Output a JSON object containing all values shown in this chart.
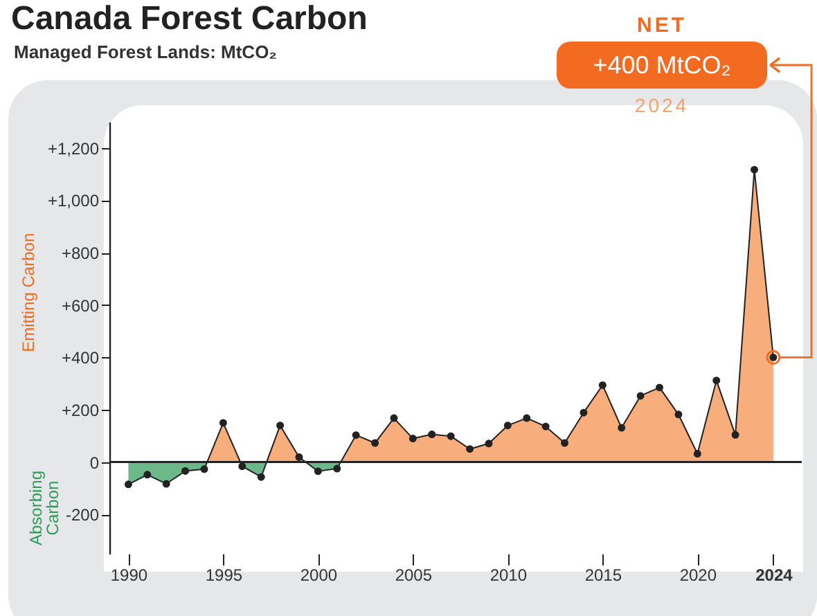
{
  "chart_data": {
    "type": "area",
    "title": "Canada Forest Carbon",
    "subtitle": "Managed Forest Lands: MtCO₂",
    "ylabel": "Emitting Carbon",
    "annotations": [
      "Absorbing Carbon",
      "NET",
      "+400 MtCO₂",
      "2024"
    ],
    "ref_lines": [
      {
        "axis": "y",
        "value": 0
      }
    ],
    "x": [
      1990,
      1991,
      1992,
      1993,
      1994,
      1995,
      1996,
      1997,
      1998,
      1999,
      2000,
      2001,
      2002,
      2003,
      2004,
      2005,
      2006,
      2007,
      2008,
      2009,
      2010,
      2011,
      2012,
      2013,
      2014,
      2015,
      2016,
      2017,
      2018,
      2019,
      2020,
      2021,
      2022,
      2023,
      2024
    ],
    "series": [
      {
        "color": "#f7ae7c",
        "values": [
          -85,
          -48,
          -83,
          -34,
          -27,
          150,
          -16,
          -57,
          140,
          19,
          -35,
          -25,
          103,
          73,
          168,
          90,
          106,
          99,
          50,
          71,
          140,
          168,
          136,
          73,
          189,
          294,
          131,
          253,
          285,
          182,
          32,
          312,
          104,
          1117,
          400
        ]
      }
    ],
    "xlim": [
      1989,
      2025.5
    ],
    "ylim": [
      -350,
      1300
    ],
    "xticks": [
      1990,
      1995,
      2000,
      2005,
      2010,
      2015,
      2020,
      2024
    ],
    "yticks": [
      {
        "value": -200,
        "label": "-200"
      },
      0,
      {
        "value": 200,
        "label": "+200"
      },
      {
        "value": 400,
        "label": "+400"
      },
      {
        "value": 600,
        "label": "+600"
      },
      {
        "value": 800,
        "label": "+800"
      },
      {
        "value": 1000,
        "label": "+1,000"
      },
      {
        "value": 1200,
        "label": "+1,200"
      }
    ],
    "grid": false,
    "marker": "circle"
  }
}
